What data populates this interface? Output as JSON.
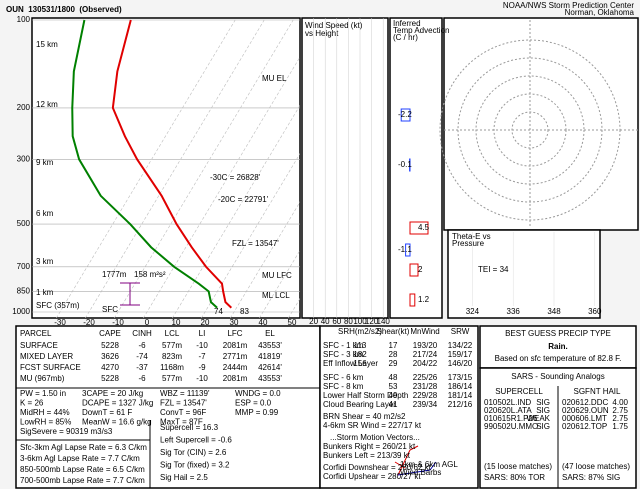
{
  "header": {
    "title": "OUN  130531/1800  (Observed)",
    "org": "NOAA/NWS Storm Prediction Center",
    "location": "Norman, Oklahoma"
  },
  "skewt": {
    "pressure_labels": [
      100,
      200,
      300,
      500,
      700,
      850,
      1000
    ],
    "temp_labels": [
      -30,
      -20,
      -10,
      0,
      10,
      20,
      30,
      40,
      50
    ],
    "height_labels": [
      "15 km",
      "12 km",
      "9 km",
      "6 km",
      "3 km",
      "1 km",
      "SFC (357m)"
    ],
    "annotations": [
      "-30C = 26828'",
      "-20C = 22791'",
      "FZL = 13547'",
      "MU EL",
      "MU LFC",
      "ML LCL",
      "1777m",
      "158 m²s²",
      "SFC",
      "74",
      "83"
    ],
    "profile": {
      "pressure": [
        967,
        925,
        850,
        800,
        700,
        600,
        500,
        400,
        300,
        250,
        200,
        150,
        100
      ],
      "temperature": [
        28.2,
        25,
        22,
        20,
        11,
        2,
        -8,
        -19,
        -35,
        -44,
        -54,
        -60,
        -66
      ],
      "dewpoint": [
        23.3,
        20,
        17,
        12,
        0,
        -12,
        -24,
        -40,
        -55,
        -62,
        -68,
        -75,
        -82
      ]
    }
  },
  "wind_panel": {
    "title": [
      "Wind Speed (kt)",
      "vs Height"
    ],
    "ticks": [
      20,
      40,
      60,
      80,
      100,
      120,
      140
    ]
  },
  "advection_panel": {
    "title": [
      "Inferred",
      "Temp Advection",
      "(C / hr)"
    ],
    "values": [
      -2.2,
      -0.1,
      4.5,
      -1.1,
      2.0,
      1.2
    ]
  },
  "theta_panel": {
    "title": [
      "Theta-E vs",
      "Pressure"
    ],
    "tei": "TEI = 34",
    "ticks": [
      324,
      336,
      348,
      360
    ]
  },
  "parcel_table": {
    "header": [
      "PARCEL",
      "CAPE",
      "CINH",
      "LCL",
      "LI",
      "LFC",
      "EL"
    ],
    "rows": [
      [
        "SURFACE",
        5228,
        -6,
        "577m",
        -10,
        "2081m",
        "43553'"
      ],
      [
        "MIXED LAYER",
        3626,
        -74,
        "823m",
        -7,
        "2771m",
        "41819'"
      ],
      [
        "FCST SURFACE",
        4270,
        -37,
        "1168m",
        -9,
        "2444m",
        "42614'"
      ],
      [
        "MU (967mb)",
        5228,
        -6,
        "577m",
        -10,
        "2081m",
        "43553'"
      ]
    ]
  },
  "indices": [
    [
      "PW = 1.50 in",
      "3CAPE = 20 J/kg",
      "WBZ = 11139'",
      "WNDG = 0.0"
    ],
    [
      "K = 26",
      "DCAPE = 1327 J/kg",
      "FZL = 13547'",
      "ESP = 0.0"
    ],
    [
      "MidRH = 44%",
      "DownT = 61 F",
      "ConvT = 96F",
      "MMP = 0.99"
    ],
    [
      "LowRH = 85%",
      "MeanW = 16.6 g/kg",
      "MaxT = 87F"
    ],
    [
      "SigSevere = 90319 m3/s3"
    ]
  ],
  "lapse_rates": [
    "Sfc-3km Agl Lapse Rate = 6.3 C/km",
    "3-6km Agl Lapse Rate = 7.7 C/km",
    "850-500mb Lapse Rate = 6.5 C/km",
    "700-500mb Lapse Rate = 7.7 C/km"
  ],
  "composite": [
    {
      "text": "Supercell = 16.3",
      "color": "#ff0000"
    },
    {
      "text": "Left Supercell = -0.6",
      "color": "#1e90ff"
    },
    {
      "text": "Sig Tor (CIN) = 2.6",
      "color": "#ff6600"
    },
    {
      "text": "Sig Tor (fixed) = 3.2",
      "color": "#ff6600"
    },
    {
      "text": "Sig Hail = 2.5",
      "color": "#dd0000"
    }
  ],
  "kinematics": {
    "header": [
      "SRH(m2/s2)",
      "Shear(kt)",
      "MnWind",
      "SRW"
    ],
    "rows": [
      [
        "SFC - 1 km",
        113,
        17,
        "193/20",
        "134/22"
      ],
      [
        "SFC - 3 km",
        182,
        28,
        "217/24",
        "159/17"
      ],
      [
        "Eff Inflow Layer",
        156,
        29,
        "204/22",
        "146/20"
      ],
      [
        "SFC - 6 km",
        48,
        "225/26",
        "173/15"
      ],
      [
        "SFC - 8 km",
        53,
        "231/28",
        "186/14"
      ],
      [
        "Lower Half Storm Depth",
        49,
        "229/28",
        "181/14"
      ],
      [
        "Cloud Bearing Layer",
        41,
        "239/34",
        "212/16"
      ]
    ],
    "extras": [
      "BRN Shear = 40 m2/s2",
      "4-6km SR Wind = 227/17 kt",
      "...Storm Motion Vectors...",
      "Bunkers Right = 260/21 kt",
      "Bunkers Left = 213/39 kt",
      "Corfidi Downshear = 260/62 kt",
      "Corfidi Upshear = 280/27 kt"
    ],
    "barbs_label": [
      "1km & 6km AGL",
      "Wind Barbs"
    ]
  },
  "precip": {
    "title": "BEST GUESS PRECIP TYPE",
    "type": "Rain.",
    "note": "Based on sfc temperature of 82.8 F."
  },
  "sars": {
    "title": "SARS - Sounding Analogs",
    "supercell": {
      "header": "SUPERCELL",
      "rows": [
        [
          "010502L.IND",
          "SIG"
        ],
        [
          "020620L.ATA",
          "SIG"
        ],
        [
          "010615R1.P26",
          "WEAK"
        ],
        [
          "990502U.MMO",
          "SIG"
        ]
      ],
      "matches": "(15 loose matches)",
      "result": "SARS: 80% TOR"
    },
    "hail": {
      "header": "SGFNT HAIL",
      "rows": [
        [
          "020612.DDC",
          "4.00"
        ],
        [
          "020629.OUN",
          "2.75"
        ],
        [
          "000606.LMT",
          "2.75"
        ],
        [
          "020612.TOP",
          "1.75"
        ]
      ],
      "matches": "(47 loose matches)",
      "result": "SARS: 87% SIG"
    }
  }
}
